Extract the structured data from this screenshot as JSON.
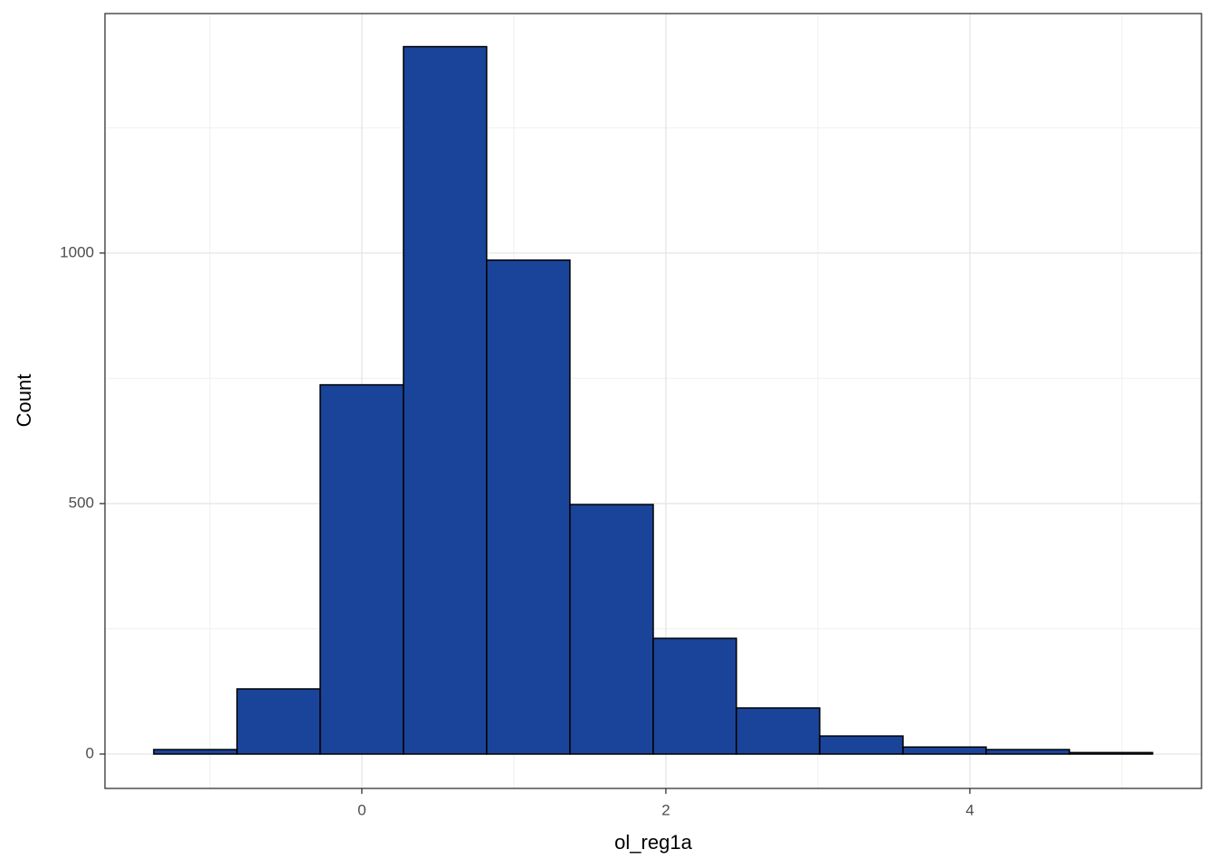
{
  "chart_data": {
    "type": "histogram",
    "x_label": "ol_reg1a",
    "y_label": "Count",
    "bins": [
      -1.369,
      -0.821,
      -0.274,
      0.274,
      0.821,
      1.369,
      1.917,
      2.464,
      3.012,
      3.56,
      4.107,
      4.655,
      5.202
    ],
    "values": [
      9,
      130,
      737,
      1412,
      986,
      498,
      231,
      92,
      36,
      14,
      9,
      3
    ],
    "color": "#1a4499",
    "edge_color": "#000000",
    "xlim": [
      -1.69,
      5.524
    ],
    "ylim": [
      -68.6,
      1478
    ],
    "xticks": [
      0,
      2,
      4
    ],
    "yticks": [
      0,
      500,
      1000
    ],
    "x_minor_grid": [
      -1,
      1,
      3,
      5
    ],
    "y_minor_grid": [
      250,
      750,
      1250
    ],
    "grid": true
  }
}
